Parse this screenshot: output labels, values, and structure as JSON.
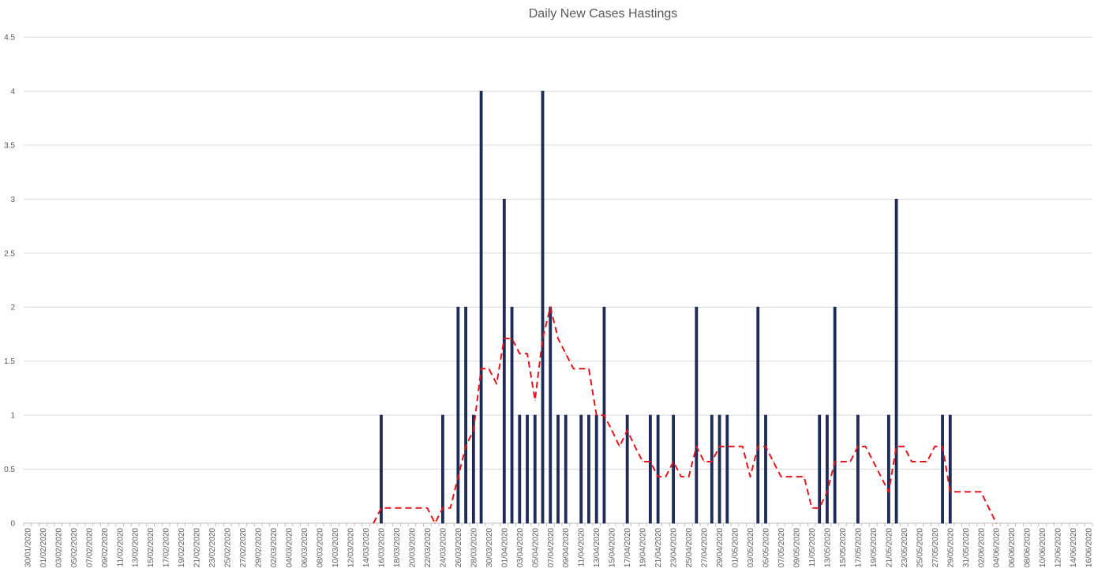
{
  "chart_data": {
    "type": "bar",
    "title": "Daily New Cases Hastings",
    "xlabel": "",
    "ylabel": "",
    "ylim": [
      0,
      4.5
    ],
    "yticks": [
      "0",
      "0.5",
      "1",
      "1.5",
      "2",
      "2.5",
      "3",
      "3.5",
      "4",
      "4.5"
    ],
    "x_start": "2020-01-30",
    "x_end": "2020-06-17",
    "x_tick_labels": [
      "30/01/2020",
      "01/02/2020",
      "03/02/2020",
      "05/02/2020",
      "07/02/2020",
      "09/02/2020",
      "11/02/2020",
      "13/02/2020",
      "15/02/2020",
      "17/02/2020",
      "19/02/2020",
      "21/02/2020",
      "23/02/2020",
      "25/02/2020",
      "27/02/2020",
      "29/02/2020",
      "02/03/2020",
      "04/03/2020",
      "06/03/2020",
      "08/03/2020",
      "10/03/2020",
      "12/03/2020",
      "14/03/2020",
      "16/03/2020",
      "18/03/2020",
      "20/03/2020",
      "22/03/2020",
      "24/03/2020",
      "26/03/2020",
      "28/03/2020",
      "30/03/2020",
      "01/04/2020",
      "03/04/2020",
      "05/04/2020",
      "07/04/2020",
      "09/04/2020",
      "11/04/2020",
      "13/04/2020",
      "15/04/2020",
      "17/04/2020",
      "19/04/2020",
      "21/04/2020",
      "23/04/2020",
      "25/04/2020",
      "27/04/2020",
      "29/04/2020",
      "01/05/2020",
      "03/05/2020",
      "05/05/2020",
      "07/05/2020",
      "09/05/2020",
      "11/05/2020",
      "13/05/2020",
      "15/05/2020",
      "17/05/2020",
      "19/05/2020",
      "21/05/2020",
      "23/05/2020",
      "25/05/2020",
      "27/05/2020",
      "29/05/2020",
      "31/05/2020",
      "02/06/2020",
      "04/06/2020",
      "06/06/2020",
      "08/06/2020",
      "10/06/2020",
      "12/06/2020",
      "14/06/2020",
      "16/06/2020"
    ],
    "grid": true,
    "legend": "none",
    "series": [
      {
        "type": "bar",
        "color": "#1f2d5a",
        "points": [
          [
            "2020-03-16",
            1
          ],
          [
            "2020-03-24",
            1
          ],
          [
            "2020-03-26",
            2
          ],
          [
            "2020-03-27",
            2
          ],
          [
            "2020-03-28",
            1
          ],
          [
            "2020-03-29",
            4
          ],
          [
            "2020-04-01",
            3
          ],
          [
            "2020-04-02",
            2
          ],
          [
            "2020-04-03",
            1
          ],
          [
            "2020-04-04",
            1
          ],
          [
            "2020-04-05",
            1
          ],
          [
            "2020-04-06",
            4
          ],
          [
            "2020-04-07",
            2
          ],
          [
            "2020-04-08",
            1
          ],
          [
            "2020-04-09",
            1
          ],
          [
            "2020-04-11",
            1
          ],
          [
            "2020-04-12",
            1
          ],
          [
            "2020-04-13",
            1
          ],
          [
            "2020-04-14",
            2
          ],
          [
            "2020-04-17",
            1
          ],
          [
            "2020-04-20",
            1
          ],
          [
            "2020-04-21",
            1
          ],
          [
            "2020-04-23",
            1
          ],
          [
            "2020-04-26",
            2
          ],
          [
            "2020-04-28",
            1
          ],
          [
            "2020-04-29",
            1
          ],
          [
            "2020-04-30",
            1
          ],
          [
            "2020-05-04",
            2
          ],
          [
            "2020-05-05",
            1
          ],
          [
            "2020-05-12",
            1
          ],
          [
            "2020-05-13",
            1
          ],
          [
            "2020-05-14",
            2
          ],
          [
            "2020-05-17",
            1
          ],
          [
            "2020-05-21",
            1
          ],
          [
            "2020-05-22",
            3
          ],
          [
            "2020-05-28",
            1
          ],
          [
            "2020-05-29",
            1
          ]
        ]
      },
      {
        "type": "line",
        "style": "dashed",
        "color": "#e3141b",
        "points": [
          [
            "2020-03-15",
            0
          ],
          [
            "2020-03-16",
            0.14
          ],
          [
            "2020-03-22",
            0.14
          ],
          [
            "2020-03-23",
            0
          ],
          [
            "2020-03-24",
            0.14
          ],
          [
            "2020-03-25",
            0.14
          ],
          [
            "2020-03-26",
            0.43
          ],
          [
            "2020-03-27",
            0.71
          ],
          [
            "2020-03-28",
            0.86
          ],
          [
            "2020-03-29",
            1.43
          ],
          [
            "2020-03-30",
            1.43
          ],
          [
            "2020-03-31",
            1.29
          ],
          [
            "2020-04-01",
            1.71
          ],
          [
            "2020-04-02",
            1.71
          ],
          [
            "2020-04-03",
            1.57
          ],
          [
            "2020-04-04",
            1.57
          ],
          [
            "2020-04-05",
            1.14
          ],
          [
            "2020-04-06",
            1.71
          ],
          [
            "2020-04-07",
            2.0
          ],
          [
            "2020-04-08",
            1.71
          ],
          [
            "2020-04-09",
            1.57
          ],
          [
            "2020-04-10",
            1.43
          ],
          [
            "2020-04-12",
            1.43
          ],
          [
            "2020-04-13",
            1.0
          ],
          [
            "2020-04-14",
            1.0
          ],
          [
            "2020-04-15",
            0.86
          ],
          [
            "2020-04-16",
            0.71
          ],
          [
            "2020-04-17",
            0.86
          ],
          [
            "2020-04-18",
            0.71
          ],
          [
            "2020-04-19",
            0.57
          ],
          [
            "2020-04-20",
            0.57
          ],
          [
            "2020-04-21",
            0.43
          ],
          [
            "2020-04-22",
            0.43
          ],
          [
            "2020-04-23",
            0.57
          ],
          [
            "2020-04-24",
            0.43
          ],
          [
            "2020-04-25",
            0.43
          ],
          [
            "2020-04-26",
            0.71
          ],
          [
            "2020-04-27",
            0.57
          ],
          [
            "2020-04-28",
            0.57
          ],
          [
            "2020-04-29",
            0.71
          ],
          [
            "2020-05-02",
            0.71
          ],
          [
            "2020-05-03",
            0.43
          ],
          [
            "2020-05-04",
            0.71
          ],
          [
            "2020-05-05",
            0.71
          ],
          [
            "2020-05-06",
            0.57
          ],
          [
            "2020-05-07",
            0.43
          ],
          [
            "2020-05-10",
            0.43
          ],
          [
            "2020-05-11",
            0.14
          ],
          [
            "2020-05-12",
            0.14
          ],
          [
            "2020-05-13",
            0.29
          ],
          [
            "2020-05-14",
            0.57
          ],
          [
            "2020-05-16",
            0.57
          ],
          [
            "2020-05-17",
            0.71
          ],
          [
            "2020-05-18",
            0.71
          ],
          [
            "2020-05-19",
            0.57
          ],
          [
            "2020-05-21",
            0.29
          ],
          [
            "2020-05-22",
            0.71
          ],
          [
            "2020-05-23",
            0.71
          ],
          [
            "2020-05-24",
            0.57
          ],
          [
            "2020-05-26",
            0.57
          ],
          [
            "2020-05-27",
            0.71
          ],
          [
            "2020-05-28",
            0.71
          ],
          [
            "2020-05-29",
            0.29
          ],
          [
            "2020-06-02",
            0.29
          ],
          [
            "2020-06-04",
            0
          ]
        ]
      }
    ]
  }
}
